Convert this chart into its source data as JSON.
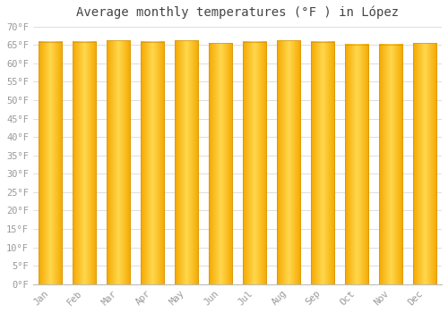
{
  "title": "Average monthly temperatures (°F ) in López",
  "months": [
    "Jan",
    "Feb",
    "Mar",
    "Apr",
    "May",
    "Jun",
    "Jul",
    "Aug",
    "Sep",
    "Oct",
    "Nov",
    "Dec"
  ],
  "values": [
    65.8,
    65.8,
    66.2,
    65.8,
    66.2,
    65.5,
    65.8,
    66.2,
    65.8,
    65.1,
    65.1,
    65.5
  ],
  "bar_color_left": "#F5A800",
  "bar_color_center": "#FFD84D",
  "bar_color_right": "#F5A800",
  "background_color": "#ffffff",
  "grid_color": "#dddddd",
  "ylim": [
    0,
    70
  ],
  "yticks": [
    0,
    5,
    10,
    15,
    20,
    25,
    30,
    35,
    40,
    45,
    50,
    55,
    60,
    65,
    70
  ],
  "title_fontsize": 10,
  "tick_fontsize": 7.5,
  "font_color": "#999999",
  "bar_width": 0.7,
  "bar_edge_color": "#D4940A",
  "bar_edge_width": 0.5
}
